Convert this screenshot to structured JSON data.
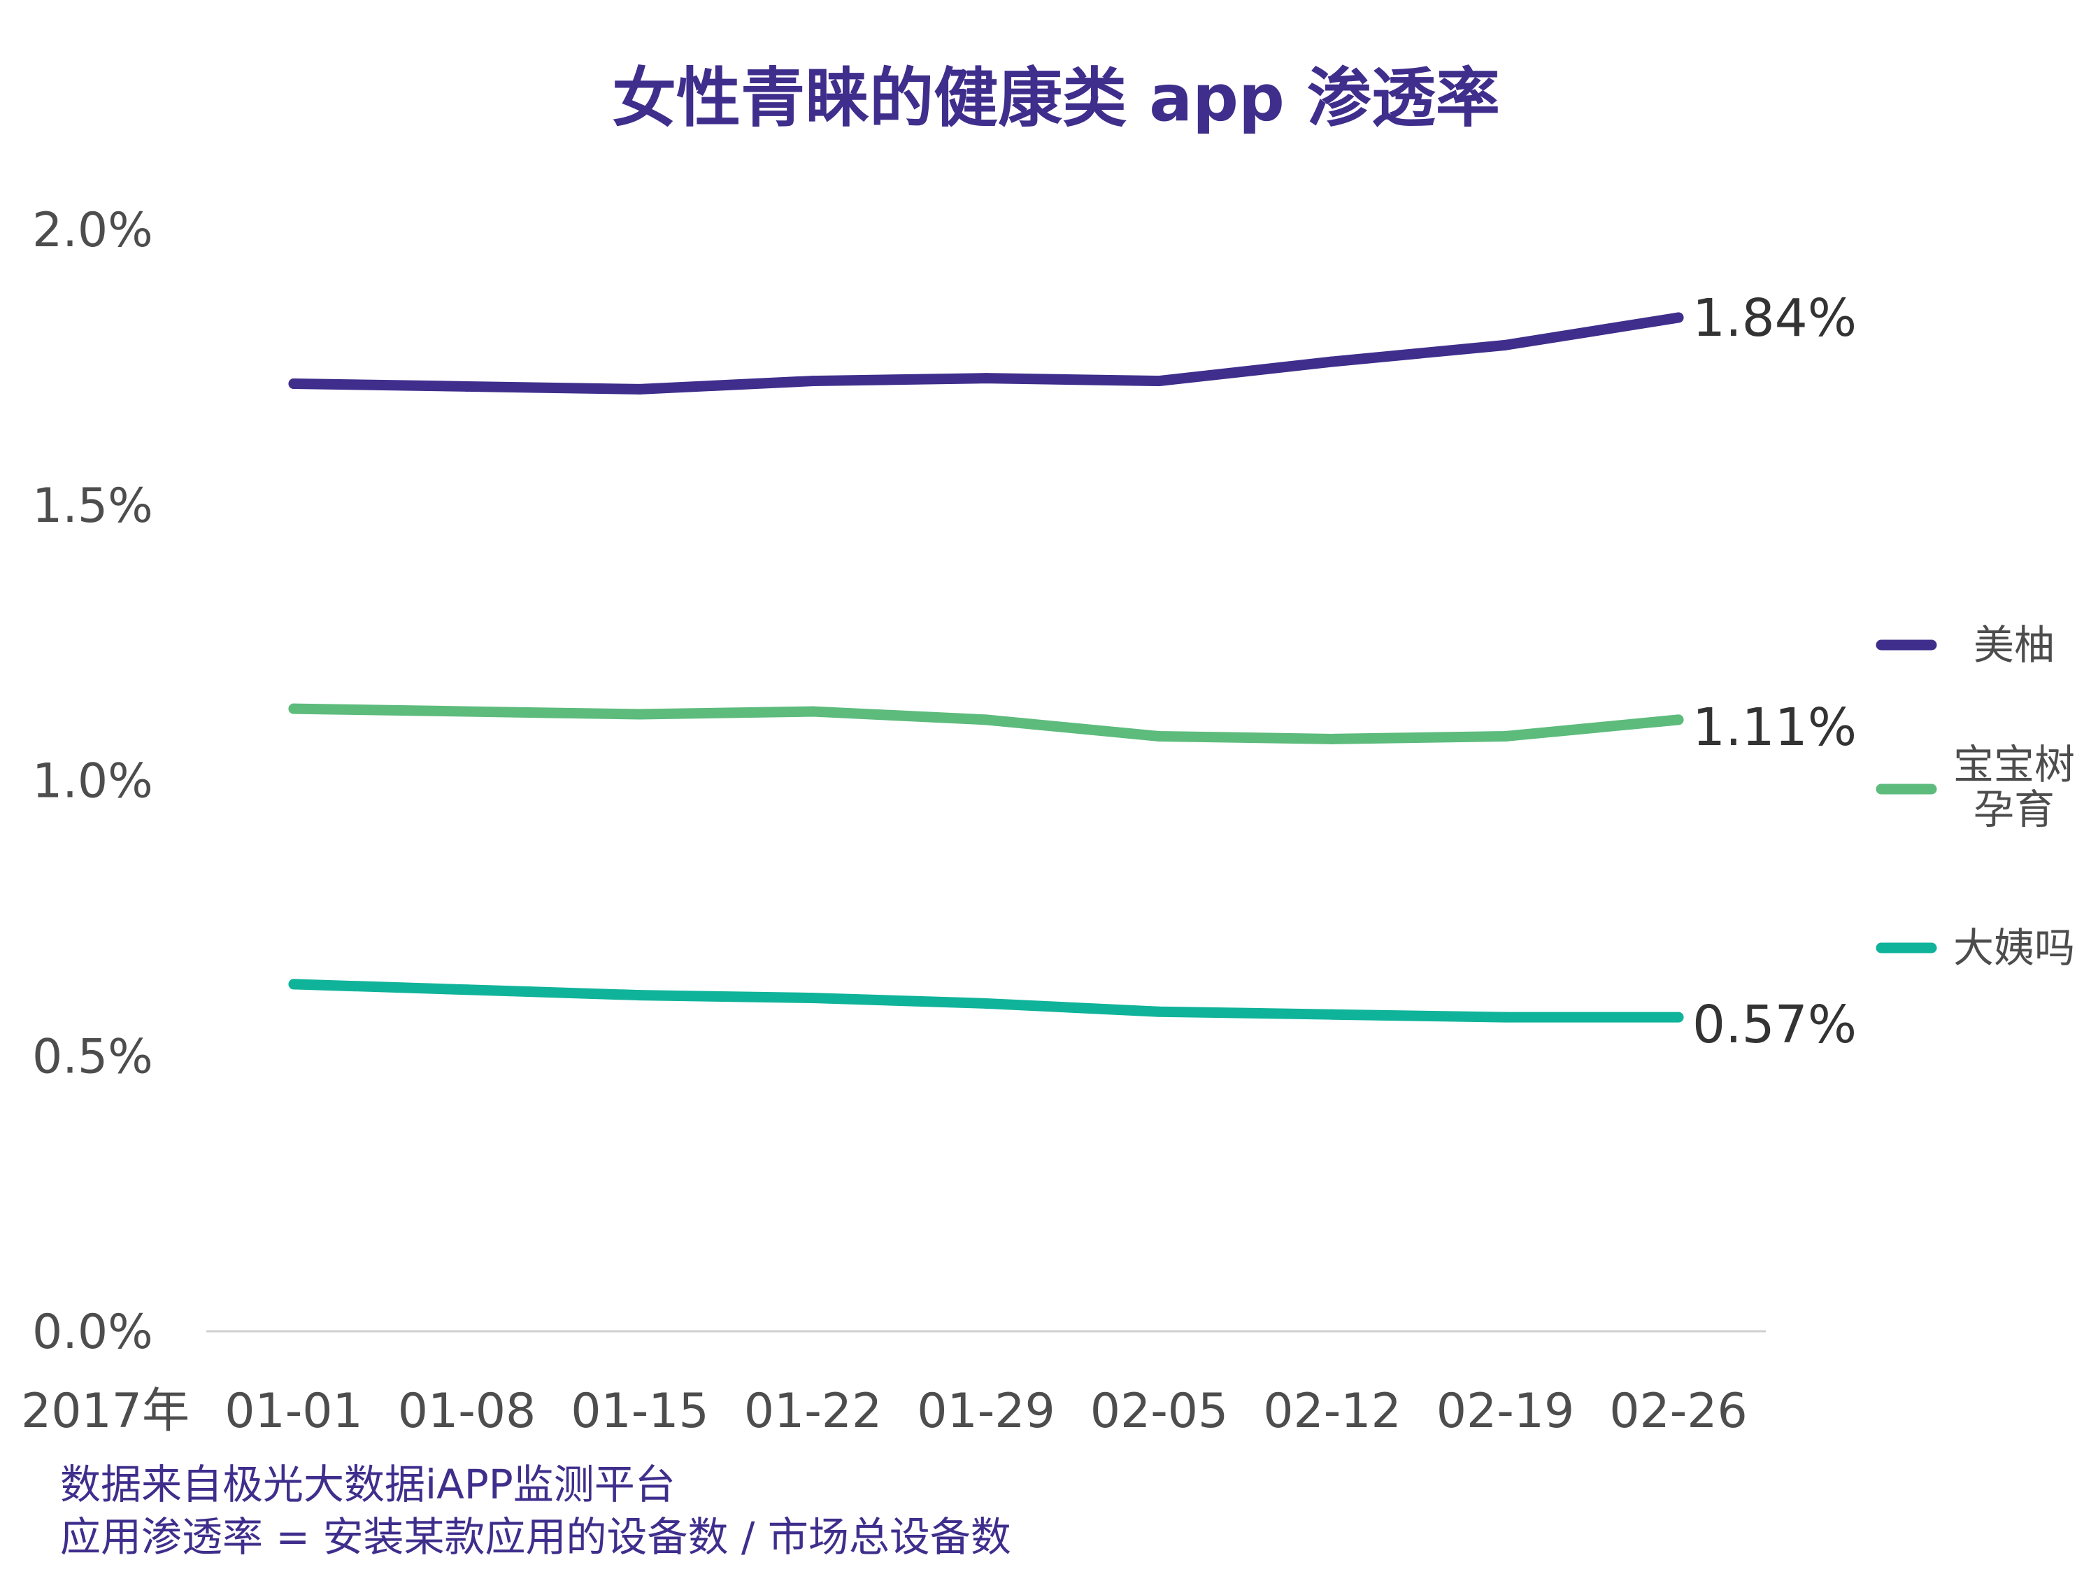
{
  "chart_data": {
    "type": "line",
    "title": "女性青睐的健康类 app 渗透率",
    "year_label": "2017年",
    "categories": [
      "01-01",
      "01-08",
      "01-15",
      "01-22",
      "01-29",
      "02-05",
      "02-12",
      "02-19",
      "02-26"
    ],
    "ylim": [
      0,
      2.0
    ],
    "yticks": [
      "0.0%",
      "0.5%",
      "1.0%",
      "1.5%",
      "2.0%"
    ],
    "grid": false,
    "legend_position": "right",
    "series": [
      {
        "name": "美柚",
        "color": "#3f2e8c",
        "values": [
          1.72,
          1.715,
          1.71,
          1.725,
          1.73,
          1.725,
          1.76,
          1.79,
          1.84
        ],
        "end_label": "1.84%"
      },
      {
        "name": "宝宝树孕育",
        "color": "#5dbb7c",
        "values": [
          1.13,
          1.125,
          1.12,
          1.125,
          1.11,
          1.08,
          1.075,
          1.08,
          1.11
        ],
        "end_label": "1.11%"
      },
      {
        "name": "大姨吗",
        "color": "#0fb39a",
        "values": [
          0.63,
          0.62,
          0.61,
          0.605,
          0.595,
          0.58,
          0.575,
          0.57,
          0.57
        ],
        "end_label": "0.57%"
      }
    ]
  },
  "notes": {
    "source": "数据来自极光大数据iAPP监测平台",
    "definition": "应用渗透率 = 安装某款应用的设备数 / 市场总设备数"
  }
}
